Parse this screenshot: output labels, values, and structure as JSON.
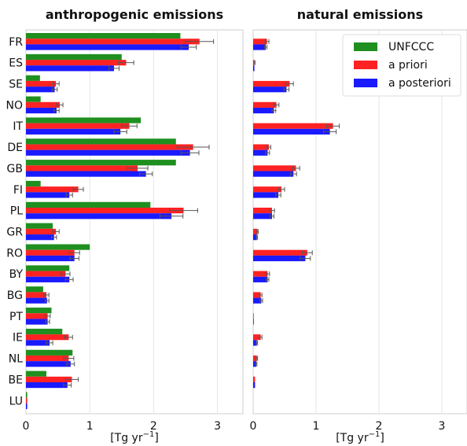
{
  "chart_data": {
    "type": "bar",
    "orientation": "horizontal",
    "categories": [
      "FR",
      "ES",
      "SE",
      "NO",
      "IT",
      "DE",
      "GB",
      "FI",
      "PL",
      "GR",
      "RO",
      "BY",
      "BG",
      "PT",
      "IE",
      "NL",
      "BE",
      "LU"
    ],
    "xlim": [
      0,
      3.4
    ],
    "xticks": [
      0,
      1,
      2,
      3
    ],
    "xlabel_main": "[Tg yr",
    "xlabel_sup": "−1",
    "xlabel_end": "]",
    "grid": "vertical",
    "legend_position": "top-right",
    "series_colors": {
      "UNFCCC": "#1f8f1f",
      "a priori": "#ff2222",
      "a posteriori": "#1a1aff"
    },
    "panels": [
      {
        "title": "anthropogenic emissions",
        "series": [
          {
            "name": "UNFCCC",
            "values": [
              2.42,
              1.5,
              0.22,
              0.23,
              1.8,
              2.35,
              2.35,
              0.23,
              1.95,
              0.42,
              1.0,
              0.68,
              0.27,
              0.4,
              0.57,
              0.73,
              0.32,
              0.02
            ]
          },
          {
            "name": "a priori",
            "values": [
              2.72,
              1.57,
              0.47,
              0.53,
              1.62,
              2.62,
              1.75,
              0.82,
              2.47,
              0.47,
              0.76,
              0.62,
              0.32,
              0.34,
              0.67,
              0.67,
              0.72,
              0.02
            ]
          },
          {
            "name": "a posteriori",
            "values": [
              2.55,
              1.38,
              0.45,
              0.48,
              1.48,
              2.57,
              1.88,
              0.68,
              2.28,
              0.44,
              0.76,
              0.68,
              0.33,
              0.34,
              0.37,
              0.7,
              0.65,
              0.02
            ]
          }
        ],
        "errors_prior": [
          0.22,
          0.12,
          0.05,
          0.05,
          0.12,
          0.25,
          0.16,
          0.08,
          0.22,
          0.05,
          0.08,
          0.07,
          0.04,
          0.04,
          0.06,
          0.08,
          0.1,
          0.0
        ],
        "errors_post": [
          0.12,
          0.08,
          0.04,
          0.04,
          0.1,
          0.14,
          0.1,
          0.05,
          0.18,
          0.04,
          0.07,
          0.06,
          0.03,
          0.03,
          0.05,
          0.06,
          0.06,
          0.0
        ]
      },
      {
        "title": "natural emissions",
        "series": [
          {
            "name": "UNFCCC",
            "values": [
              0,
              0,
              0,
              0,
              0,
              0,
              0,
              0,
              0,
              0,
              0,
              0,
              0,
              0,
              0,
              0,
              0,
              0
            ]
          },
          {
            "name": "a priori",
            "values": [
              0.22,
              0.02,
              0.58,
              0.37,
              1.27,
              0.25,
              0.68,
              0.45,
              0.3,
              0.07,
              0.86,
              0.23,
              0.12,
              0.01,
              0.12,
              0.06,
              0.03,
              0.0
            ]
          },
          {
            "name": "a posteriori",
            "values": [
              0.2,
              0.02,
              0.53,
              0.33,
              1.22,
              0.23,
              0.64,
              0.4,
              0.3,
              0.06,
              0.83,
              0.23,
              0.13,
              0.01,
              0.06,
              0.05,
              0.03,
              0.0
            ]
          }
        ],
        "errors_prior": [
          0.03,
          0.01,
          0.06,
          0.04,
          0.1,
          0.03,
          0.06,
          0.05,
          0.04,
          0.01,
          0.08,
          0.03,
          0.02,
          0.0,
          0.02,
          0.01,
          0.0,
          0.0
        ],
        "errors_post": [
          0.02,
          0.0,
          0.04,
          0.03,
          0.1,
          0.03,
          0.05,
          0.04,
          0.03,
          0.01,
          0.08,
          0.02,
          0.02,
          0.0,
          0.01,
          0.01,
          0.0,
          0.0
        ]
      }
    ]
  }
}
